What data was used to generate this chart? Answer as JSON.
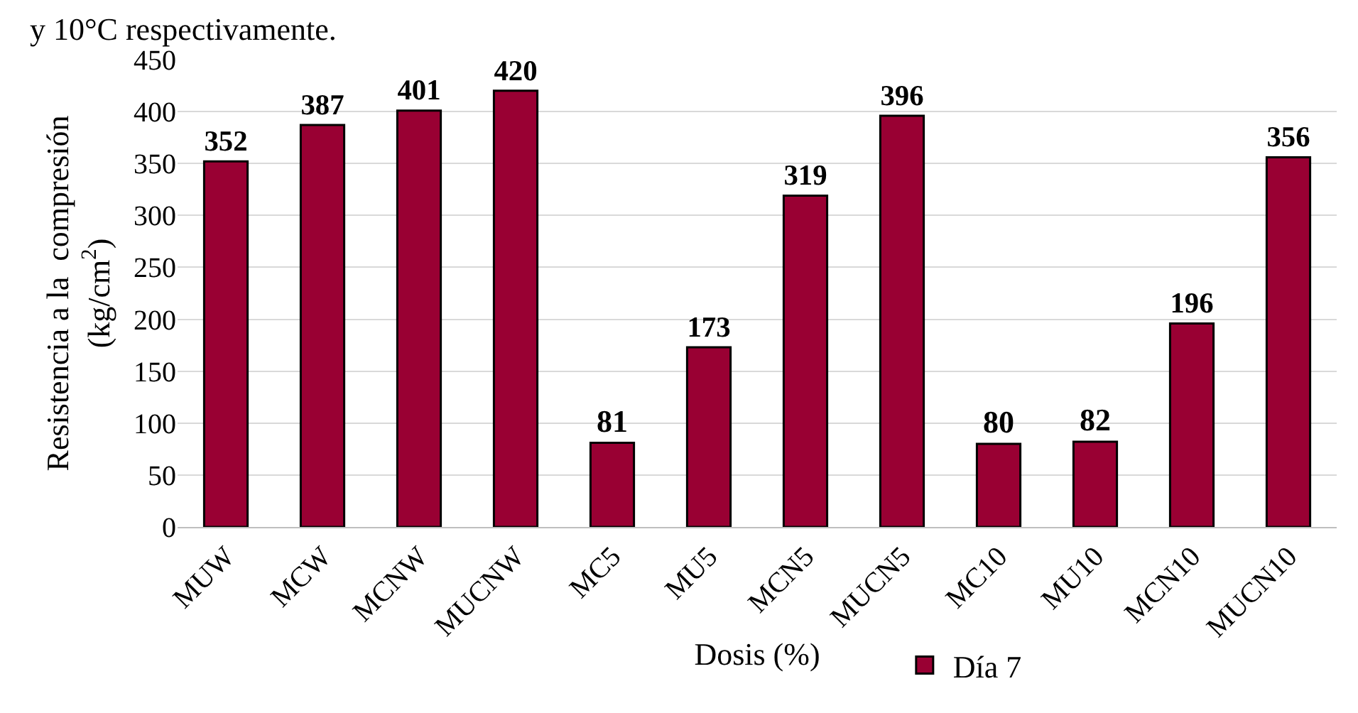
{
  "chart_data": {
    "type": "bar",
    "xlabel": "Dosis (%)",
    "ylabel": "Resistencia a la  compresión\n(kg/cm$^{2}$)",
    "annotations": [
      "y 10°C respectivamente."
    ],
    "categories": [
      "MUW",
      "MCW",
      "MCNW",
      "MUCNW",
      "MC5",
      "MU5",
      "MCN5",
      "MUCN5",
      "MC10",
      "MU10",
      "MCN10",
      "MUCN10"
    ],
    "series": [
      {
        "name": "Día 7",
        "color": "#990033",
        "values": [
          352,
          387,
          401,
          420,
          81,
          173,
          319,
          396,
          80,
          82,
          196,
          356
        ]
      }
    ],
    "ylim": [
      0,
      450
    ],
    "yticks": [
      0,
      50,
      100,
      150,
      200,
      250,
      300,
      350,
      400,
      450
    ],
    "grid": "y",
    "legend": "bottom",
    "data_labels": true
  }
}
